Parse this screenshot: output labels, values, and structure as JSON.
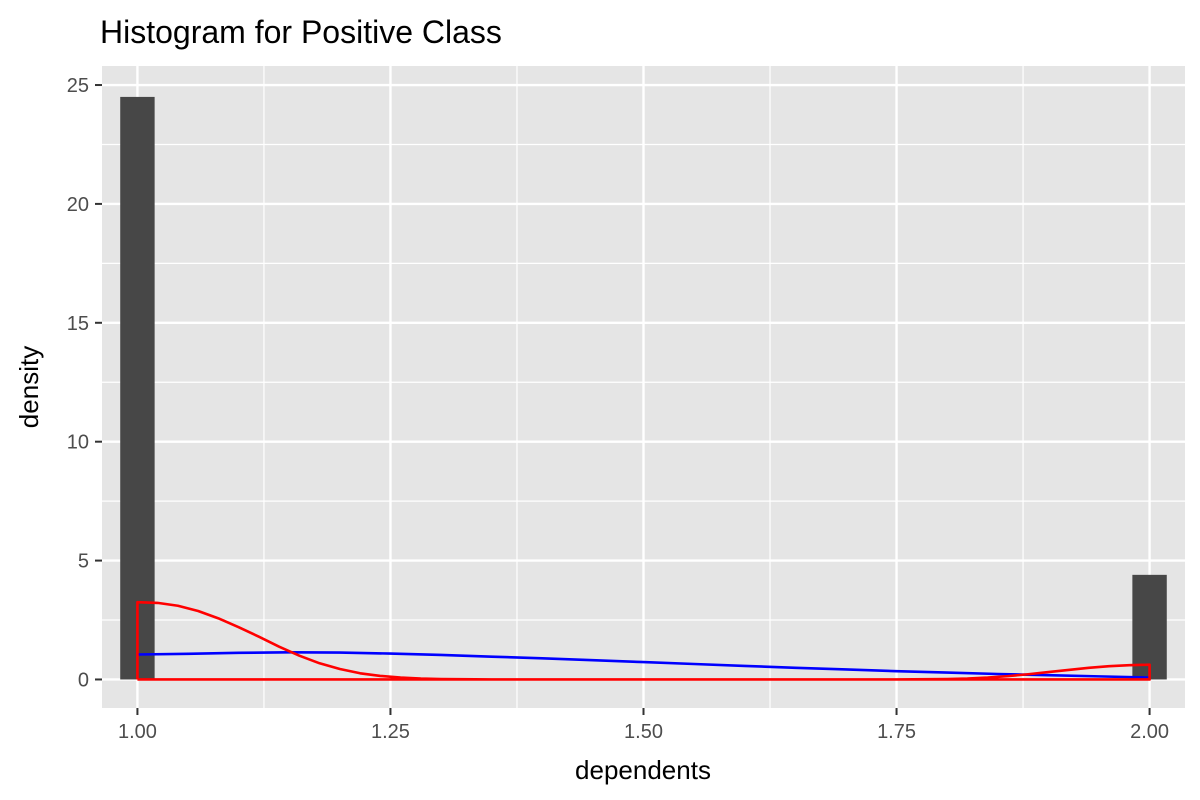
{
  "chart_data": {
    "type": "bar",
    "title": "Histogram for Positive Class",
    "xlabel": "dependents",
    "ylabel": "density",
    "xlim": [
      0.965,
      2.035
    ],
    "ylim": [
      -1.2,
      25.8
    ],
    "x_ticks": [
      {
        "value": 1.0,
        "label": "1.00"
      },
      {
        "value": 1.25,
        "label": "1.25"
      },
      {
        "value": 1.5,
        "label": "1.50"
      },
      {
        "value": 1.75,
        "label": "1.75"
      },
      {
        "value": 2.0,
        "label": "2.00"
      }
    ],
    "y_ticks": [
      {
        "value": 0,
        "label": "0"
      },
      {
        "value": 5,
        "label": "5"
      },
      {
        "value": 10,
        "label": "10"
      },
      {
        "value": 15,
        "label": "15"
      },
      {
        "value": 20,
        "label": "20"
      },
      {
        "value": 25,
        "label": "25"
      }
    ],
    "grid": true,
    "bars": [
      {
        "x0": 0.983,
        "x1": 1.017,
        "value": 24.5
      },
      {
        "x0": 1.983,
        "x1": 2.017,
        "value": 4.4
      }
    ],
    "series": [
      {
        "type": "density-line",
        "color": "#0000ff",
        "points": [
          [
            1.0,
            1.05
          ],
          [
            1.05,
            1.08
          ],
          [
            1.1,
            1.12
          ],
          [
            1.15,
            1.14
          ],
          [
            1.2,
            1.13
          ],
          [
            1.25,
            1.09
          ],
          [
            1.3,
            1.03
          ],
          [
            1.35,
            0.96
          ],
          [
            1.4,
            0.89
          ],
          [
            1.45,
            0.81
          ],
          [
            1.5,
            0.73
          ],
          [
            1.55,
            0.65
          ],
          [
            1.6,
            0.57
          ],
          [
            1.65,
            0.49
          ],
          [
            1.7,
            0.42
          ],
          [
            1.75,
            0.35
          ],
          [
            1.8,
            0.29
          ],
          [
            1.85,
            0.23
          ],
          [
            1.9,
            0.18
          ],
          [
            1.95,
            0.13
          ],
          [
            2.0,
            0.08
          ]
        ]
      },
      {
        "type": "density-outline",
        "color": "#ff0000",
        "points": [
          [
            1.0,
            0
          ],
          [
            1.0,
            3.25
          ],
          [
            1.02,
            3.22
          ],
          [
            1.04,
            3.1
          ],
          [
            1.06,
            2.88
          ],
          [
            1.08,
            2.57
          ],
          [
            1.1,
            2.2
          ],
          [
            1.12,
            1.8
          ],
          [
            1.14,
            1.38
          ],
          [
            1.16,
            1.0
          ],
          [
            1.18,
            0.68
          ],
          [
            1.2,
            0.44
          ],
          [
            1.22,
            0.26
          ],
          [
            1.24,
            0.15
          ],
          [
            1.26,
            0.08
          ],
          [
            1.28,
            0.04
          ],
          [
            1.3,
            0.02
          ],
          [
            1.35,
            0.0
          ],
          [
            1.75,
            0.0
          ],
          [
            1.8,
            0.02
          ],
          [
            1.82,
            0.04
          ],
          [
            1.84,
            0.08
          ],
          [
            1.86,
            0.14
          ],
          [
            1.88,
            0.22
          ],
          [
            1.9,
            0.31
          ],
          [
            1.92,
            0.4
          ],
          [
            1.94,
            0.49
          ],
          [
            1.96,
            0.56
          ],
          [
            1.98,
            0.6
          ],
          [
            2.0,
            0.62
          ],
          [
            2.0,
            0
          ],
          [
            1.0,
            0
          ]
        ]
      }
    ]
  }
}
